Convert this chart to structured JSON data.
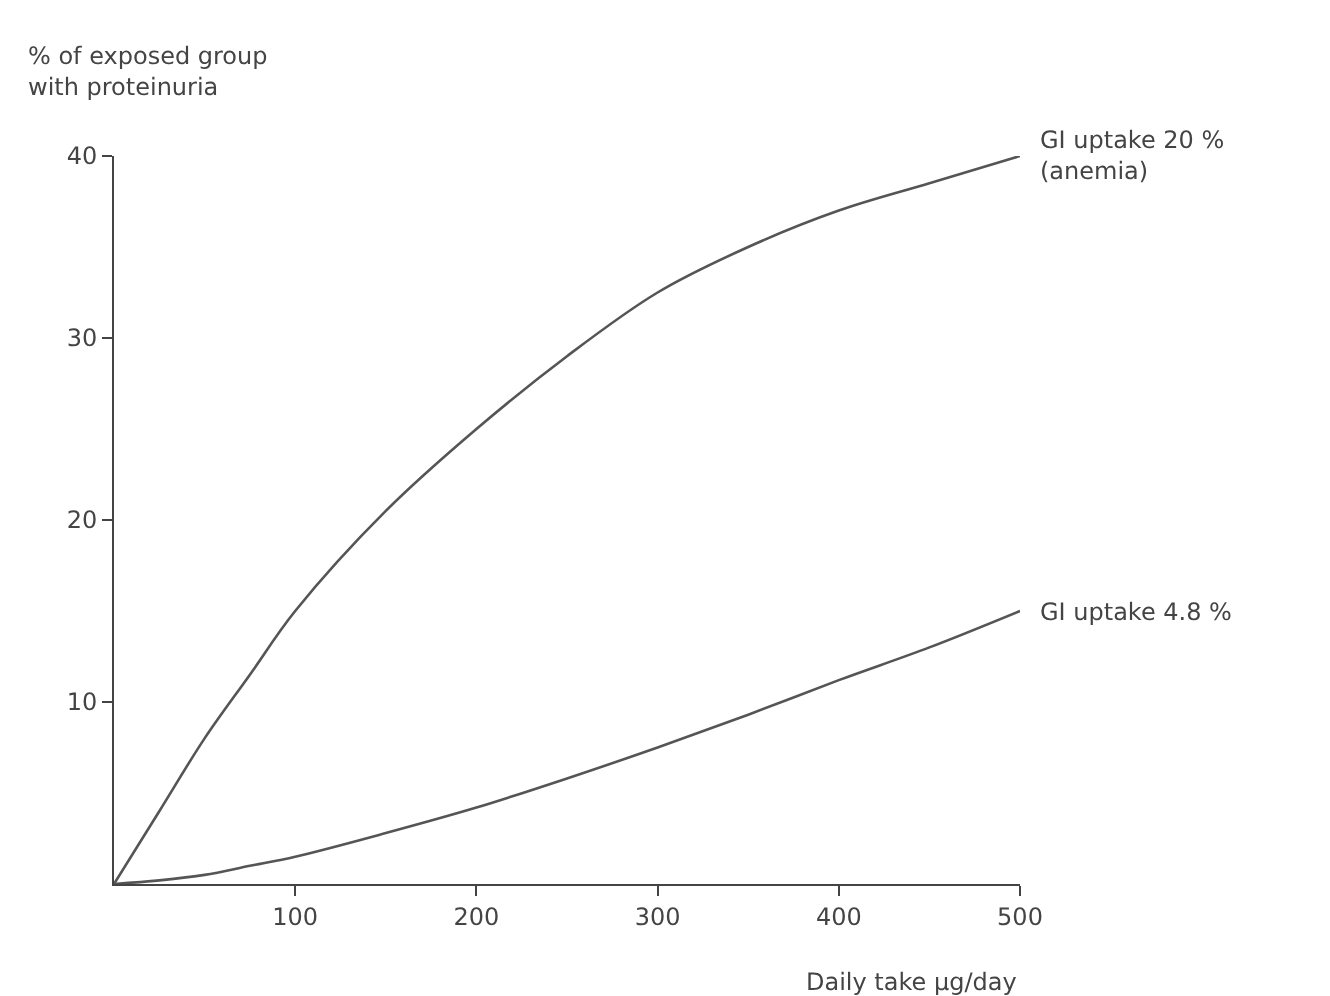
{
  "chart_data": {
    "type": "line",
    "xlabel": "Daily take µg/day",
    "ylabel": "% of exposed group with proteinuria",
    "x": [
      0,
      25,
      50,
      75,
      100,
      150,
      200,
      250,
      300,
      350,
      400,
      450,
      500
    ],
    "series": [
      {
        "name": "GI uptake 20 % (anemia)",
        "color": "#555555",
        "values": [
          0,
          4,
          8,
          11.5,
          15,
          20.5,
          25,
          29,
          32.5,
          35,
          37,
          38.5,
          40
        ]
      },
      {
        "name": "GI uptake 4.8 %",
        "color": "#555555",
        "values": [
          0,
          0.2,
          0.5,
          1,
          1.5,
          2.8,
          4.2,
          5.8,
          7.5,
          9.3,
          11.2,
          13,
          15
        ]
      }
    ],
    "xlim": [
      0,
      500
    ],
    "ylim": [
      0,
      40
    ],
    "xticks": [
      100,
      200,
      300,
      400,
      500
    ],
    "yticks": [
      10,
      20,
      30,
      40
    ],
    "grid": false,
    "legend": false,
    "marker": "none",
    "line_style": "solid"
  }
}
